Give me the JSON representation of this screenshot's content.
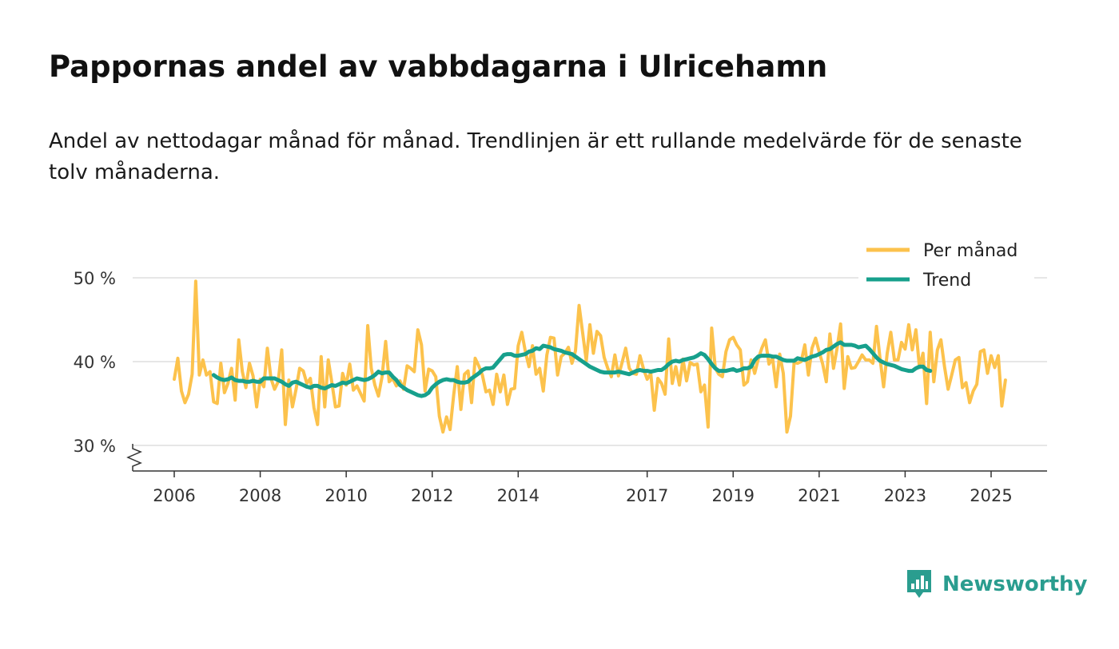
{
  "title": "Pappornas andel av vabbdagarna i Ulricehamn",
  "subtitle": "Andel av nettodagar månad för månad. Trendlinjen är ett rullande medelvärde för de senaste tolv månaderna.",
  "brand": {
    "name": "Newsworthy",
    "icon": "newsworthy-logo-icon",
    "color": "#2a9d8f"
  },
  "colors": {
    "monthly": "#fcc24c",
    "trend": "#17a08c",
    "grid": "#dddddd",
    "axis": "#333333"
  },
  "chart_data": {
    "type": "line",
    "title": "Pappornas andel av vabbdagarna i Ulricehamn",
    "xlabel": "",
    "ylabel": "",
    "ylim": [
      27,
      51
    ],
    "yticks": [
      30,
      40,
      50
    ],
    "ytick_labels": [
      "30 %",
      "40 %",
      "50 %"
    ],
    "xticks": [
      2006,
      2008,
      2010,
      2012,
      2014,
      2017,
      2019,
      2021,
      2023,
      2025
    ],
    "xtick_labels": [
      "2006",
      "2008",
      "2010",
      "2012",
      "2014",
      "2017",
      "2019",
      "2021",
      "2023",
      "2025"
    ],
    "x_range": [
      2005.2,
      2026.3
    ],
    "legend": {
      "position": "top-right",
      "entries": [
        "Per månad",
        "Trend"
      ]
    },
    "series": [
      {
        "name": "Per månad",
        "color": "#fcc24c",
        "x_start": 2006.0,
        "x_step": 0.0833333,
        "values": [
          37.9,
          40.4,
          36.5,
          35.1,
          36.1,
          38.5,
          49.6,
          38.4,
          40.2,
          38.4,
          38.8,
          35.2,
          35.0,
          39.8,
          36.3,
          37.4,
          39.2,
          35.4,
          42.6,
          38.8,
          36.9,
          39.8,
          38.3,
          34.6,
          37.9,
          37.0,
          41.6,
          38.0,
          36.7,
          37.6,
          41.4,
          32.5,
          37.8,
          34.6,
          36.7,
          39.2,
          38.9,
          37.4,
          38.0,
          34.5,
          32.5,
          40.6,
          34.6,
          40.2,
          37.5,
          34.6,
          34.7,
          38.6,
          37.2,
          39.7,
          36.6,
          37.1,
          36.2,
          35.3,
          44.3,
          39.2,
          37.2,
          35.9,
          38.2,
          42.4,
          37.6,
          38.0,
          37.1,
          37.7,
          36.7,
          39.5,
          39.2,
          38.8,
          43.8,
          42.0,
          36.5,
          39.1,
          38.9,
          38.2,
          33.5,
          31.6,
          33.4,
          31.9,
          36.0,
          39.4,
          34.3,
          38.5,
          38.9,
          35.1,
          40.4,
          39.5,
          38.4,
          36.4,
          36.6,
          34.9,
          38.5,
          36.4,
          38.4,
          34.9,
          36.7,
          36.8,
          41.9,
          43.5,
          41.2,
          39.4,
          41.9,
          38.5,
          39.2,
          36.5,
          40.8,
          42.9,
          42.8,
          38.4,
          40.6,
          41.0,
          41.7,
          39.8,
          41.3,
          46.7,
          43.4,
          40.1,
          44.4,
          41.0,
          43.6,
          43.1,
          40.5,
          39.2,
          38.2,
          40.8,
          38.3,
          39.9,
          41.6,
          39.2,
          38.6,
          38.5,
          40.7,
          39.1,
          37.9,
          38.6,
          34.2,
          38.0,
          37.4,
          36.1,
          42.7,
          37.4,
          39.4,
          37.2,
          40.3,
          37.7,
          39.9,
          39.6,
          39.7,
          36.4,
          37.2,
          32.2,
          44.0,
          39.2,
          38.5,
          38.2,
          41.2,
          42.6,
          42.9,
          42.0,
          41.4,
          37.2,
          37.6,
          40.2,
          38.6,
          40.3,
          41.6,
          42.6,
          39.7,
          40.4,
          37.0,
          40.9,
          38.6,
          31.6,
          33.5,
          39.9,
          39.8,
          40.0,
          42.0,
          38.4,
          41.6,
          42.8,
          41.2,
          39.7,
          37.6,
          43.3,
          39.2,
          41.6,
          44.5,
          36.8,
          40.6,
          39.2,
          39.3,
          40.0,
          40.8,
          40.2,
          40.2,
          39.8,
          44.2,
          40.4,
          37.0,
          41.0,
          43.5,
          40.2,
          40.2,
          42.3,
          41.5,
          44.4,
          41.4,
          43.8,
          39.3,
          41.0,
          35.0,
          43.5,
          37.6,
          41.4,
          42.6,
          39.4,
          36.7,
          38.4,
          40.2,
          40.5,
          36.9,
          37.5,
          35.1,
          36.5,
          37.3,
          41.2,
          41.4,
          38.6,
          40.7,
          39.3,
          40.7,
          34.7,
          37.8
        ]
      },
      {
        "name": "Trend",
        "color": "#17a08c",
        "x_start": 2006.9167,
        "x_step": 0.0833333,
        "values": [
          38.4,
          38.1,
          37.9,
          37.8,
          37.9,
          38.1,
          37.8,
          37.7,
          37.7,
          37.6,
          37.6,
          37.7,
          37.6,
          37.6,
          38.0,
          38.0,
          38.0,
          38.0,
          37.8,
          37.6,
          37.3,
          37.1,
          37.5,
          37.6,
          37.4,
          37.2,
          37.0,
          36.9,
          37.1,
          37.1,
          36.9,
          36.8,
          37.0,
          37.2,
          37.1,
          37.3,
          37.5,
          37.4,
          37.6,
          37.8,
          38.0,
          37.9,
          37.8,
          37.9,
          38.1,
          38.4,
          38.8,
          38.6,
          38.7,
          38.7,
          38.2,
          37.8,
          37.2,
          36.9,
          36.6,
          36.4,
          36.2,
          36.0,
          35.9,
          36.0,
          36.3,
          36.9,
          37.3,
          37.6,
          37.8,
          37.9,
          37.8,
          37.8,
          37.6,
          37.5,
          37.5,
          37.6,
          38.0,
          38.3,
          38.6,
          39.0,
          39.2,
          39.2,
          39.3,
          39.8,
          40.3,
          40.8,
          40.9,
          40.9,
          40.7,
          40.7,
          40.8,
          40.9,
          41.2,
          41.3,
          41.6,
          41.5,
          41.9,
          41.8,
          41.7,
          41.5,
          41.4,
          41.3,
          41.1,
          41.0,
          40.9,
          40.6,
          40.3,
          40.0,
          39.7,
          39.4,
          39.2,
          39.0,
          38.8,
          38.7,
          38.7,
          38.7,
          38.7,
          38.8,
          38.7,
          38.6,
          38.5,
          38.7,
          38.9,
          39.0,
          38.9,
          38.9,
          38.8,
          38.9,
          39.0,
          39.0,
          39.3,
          39.7,
          40.0,
          40.1,
          40.0,
          40.2,
          40.3,
          40.4,
          40.5,
          40.7,
          41.0,
          40.8,
          40.3,
          39.7,
          39.2,
          38.9,
          38.9,
          38.9,
          39.0,
          39.1,
          38.9,
          39.0,
          39.2,
          39.2,
          39.4,
          40.2,
          40.6,
          40.7,
          40.7,
          40.7,
          40.6,
          40.6,
          40.4,
          40.2,
          40.1,
          40.1,
          40.1,
          40.4,
          40.3,
          40.2,
          40.4,
          40.6,
          40.7,
          40.9,
          41.1,
          41.4,
          41.5,
          41.8,
          42.1,
          42.3,
          42.0,
          42.0,
          42.0,
          41.9,
          41.7,
          41.8,
          41.9,
          41.5,
          41.0,
          40.5,
          40.1,
          39.9,
          39.7,
          39.6,
          39.5,
          39.3,
          39.1,
          39.0,
          38.9,
          38.9,
          39.2,
          39.4,
          39.4,
          39.0,
          38.9
        ]
      }
    ]
  }
}
